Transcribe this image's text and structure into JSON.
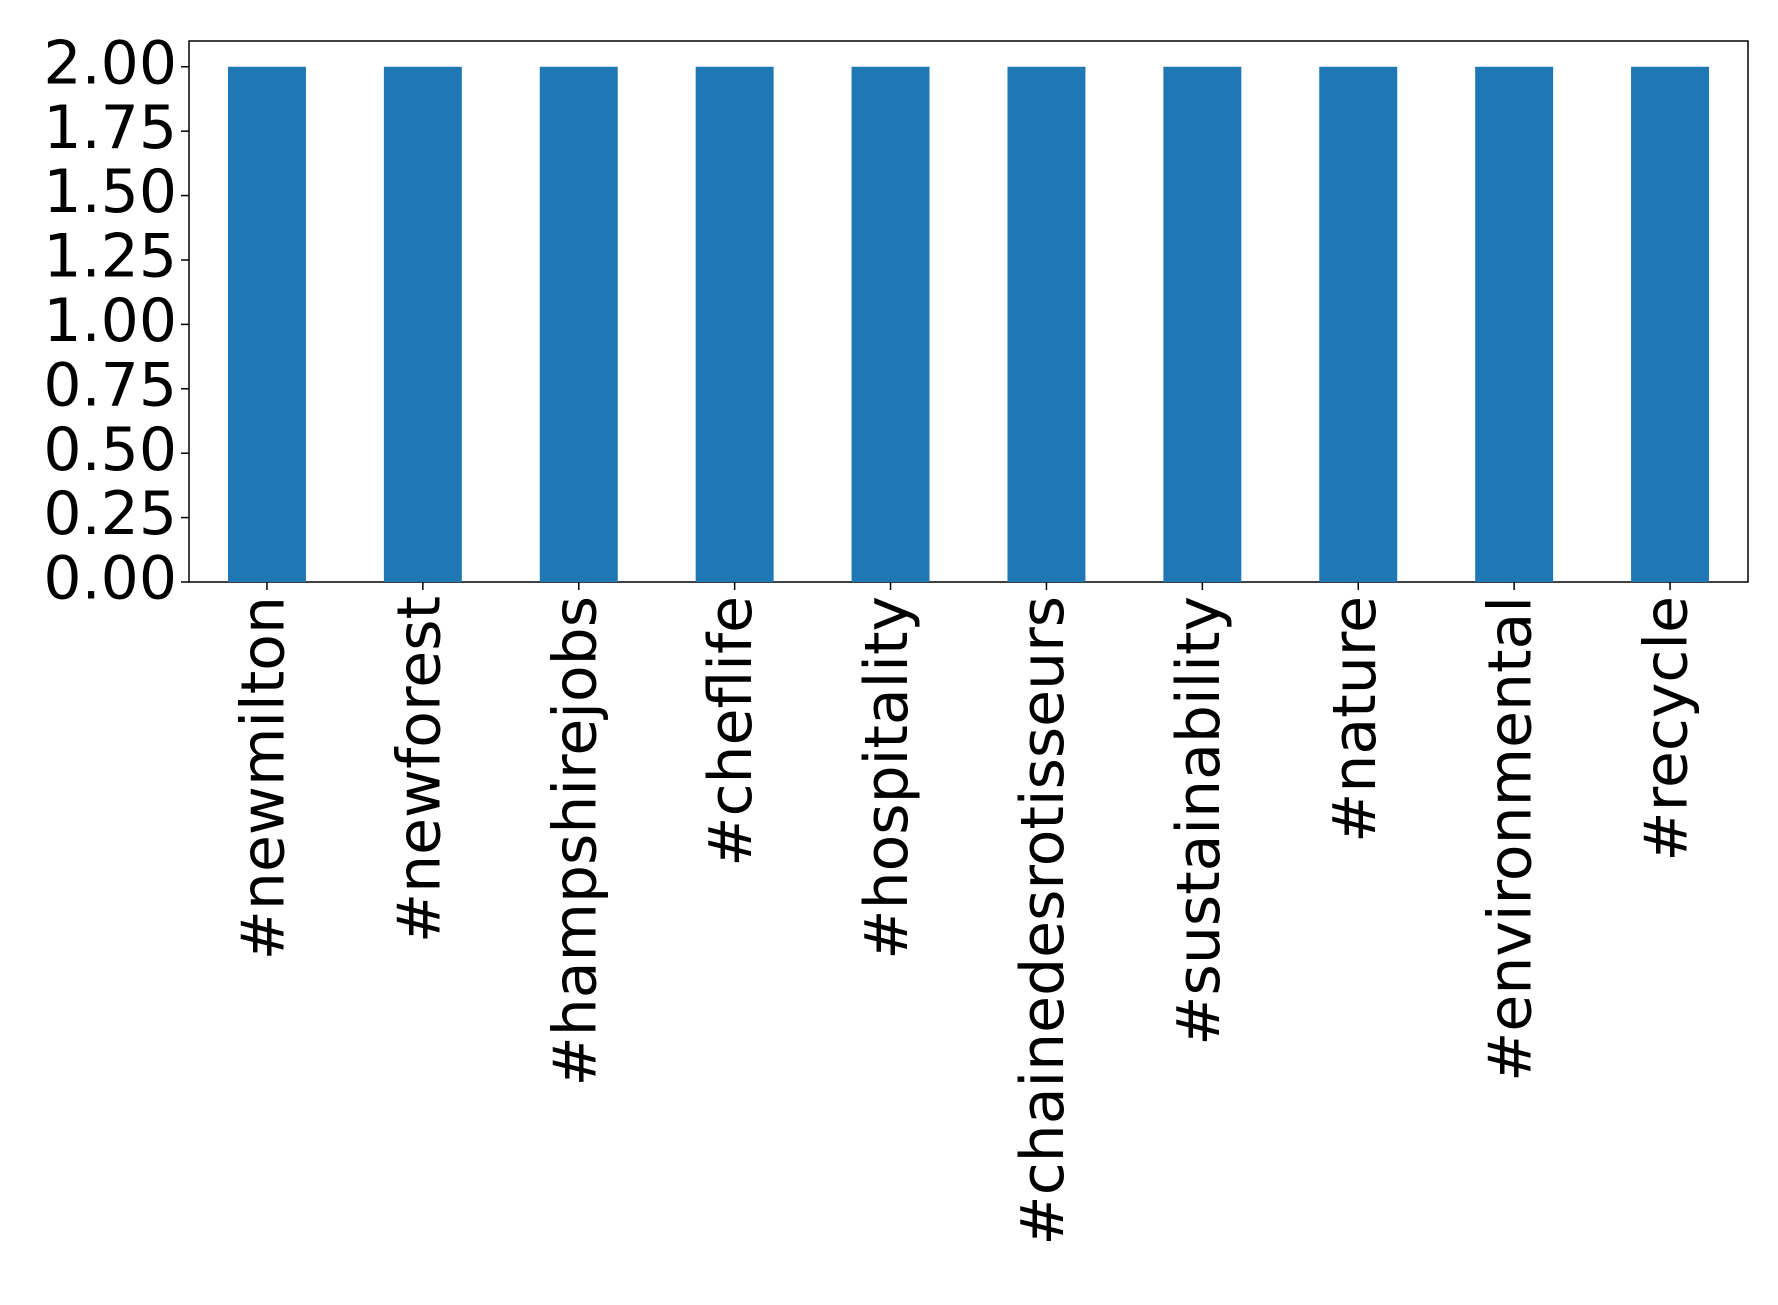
{
  "chart_data": {
    "type": "bar",
    "categories": [
      "#newmilton",
      "#newforest",
      "#hampshirejobs",
      "#cheflife",
      "#hospitality",
      "#chainedesrotisseurs",
      "#sustainability",
      "#nature",
      "#environmental",
      "#recycle"
    ],
    "values": [
      2,
      2,
      2,
      2,
      2,
      2,
      2,
      2,
      2,
      2
    ],
    "color": "#1f77b4",
    "ylim": [
      0,
      2.1
    ],
    "yticks": [
      {
        "value": 0,
        "label": "0.00"
      },
      {
        "value": 0.25,
        "label": "0.25"
      },
      {
        "value": 0.5,
        "label": "0.50"
      },
      {
        "value": 0.75,
        "label": "0.75"
      },
      {
        "value": 1,
        "label": "1.00"
      },
      {
        "value": 1.25,
        "label": "1.25"
      },
      {
        "value": 1.5,
        "label": "1.50"
      },
      {
        "value": 1.75,
        "label": "1.75"
      },
      {
        "value": 2,
        "label": "2.00"
      }
    ],
    "grid": false
  }
}
